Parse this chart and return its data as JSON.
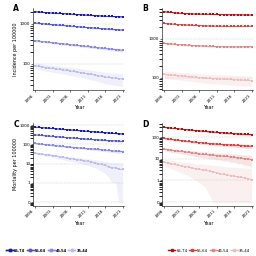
{
  "years": [
    1996,
    1997,
    1998,
    1999,
    2000,
    2001,
    2002,
    2003,
    2004,
    2005,
    2006,
    2007,
    2008,
    2009,
    2010,
    2011,
    2012,
    2013,
    2014,
    2015,
    2016,
    2017,
    2018,
    2019,
    2020,
    2021
  ],
  "panel_labels": [
    "A",
    "B",
    "C",
    "D"
  ],
  "age_groups": [
    "65-74",
    "55-64",
    "45-54",
    "35-44"
  ],
  "blue_colors": [
    "#1a1aaa",
    "#5555cc",
    "#8888dd",
    "#bbbbee"
  ],
  "red_colors": [
    "#aa1111",
    "#cc4444",
    "#dd8888",
    "#f0bbbb"
  ],
  "incidence_male": {
    "65-74": [
      2000,
      1970,
      1940,
      1910,
      1880,
      1860,
      1840,
      1820,
      1800,
      1780,
      1750,
      1730,
      1710,
      1690,
      1670,
      1650,
      1630,
      1610,
      1590,
      1570,
      1550,
      1540,
      1530,
      1520,
      1510,
      1490
    ],
    "55-64": [
      1050,
      1030,
      1010,
      990,
      970,
      955,
      940,
      925,
      910,
      895,
      880,
      865,
      850,
      835,
      820,
      808,
      796,
      784,
      772,
      760,
      750,
      740,
      730,
      720,
      710,
      700
    ],
    "45-54": [
      380,
      370,
      362,
      354,
      346,
      338,
      330,
      323,
      316,
      309,
      302,
      296,
      290,
      284,
      278,
      272,
      266,
      260,
      254,
      248,
      243,
      238,
      233,
      228,
      223,
      218
    ],
    "35-44": [
      90,
      87,
      84,
      81,
      79,
      77,
      75,
      73,
      71,
      69,
      67,
      65,
      63,
      61,
      59,
      57,
      55,
      53,
      51,
      49,
      47,
      46,
      45,
      44,
      43,
      42
    ]
  },
  "incidence_female": {
    "65-74": [
      5000,
      4900,
      4800,
      4700,
      4600,
      4550,
      4500,
      4450,
      4400,
      4380,
      4360,
      4340,
      4320,
      4300,
      4280,
      4260,
      4240,
      4220,
      4200,
      4190,
      4180,
      4170,
      4160,
      4150,
      4140,
      4130
    ],
    "55-64": [
      2500,
      2460,
      2420,
      2380,
      2340,
      2310,
      2280,
      2260,
      2240,
      2220,
      2200,
      2180,
      2160,
      2150,
      2140,
      2130,
      2120,
      2110,
      2105,
      2100,
      2100,
      2100,
      2105,
      2110,
      2115,
      2120
    ],
    "45-54": [
      760,
      748,
      736,
      724,
      712,
      702,
      692,
      682,
      672,
      665,
      658,
      651,
      644,
      640,
      636,
      632,
      628,
      624,
      622,
      620,
      618,
      620,
      622,
      624,
      626,
      628
    ],
    "35-44": [
      120,
      118,
      116,
      114,
      112,
      110,
      108,
      106,
      104,
      102,
      100,
      98,
      96,
      95,
      94,
      93,
      92,
      91,
      90,
      89,
      88,
      87,
      86,
      85,
      84,
      83
    ]
  },
  "incidence_male_ci": {
    "65-74": [
      40,
      40,
      40,
      40,
      40,
      40,
      40,
      40,
      40,
      40,
      40,
      40,
      40,
      40,
      40,
      40,
      40,
      40,
      40,
      40,
      40,
      40,
      40,
      40,
      40,
      40
    ],
    "55-64": [
      30,
      30,
      30,
      30,
      30,
      30,
      30,
      30,
      30,
      30,
      30,
      30,
      30,
      30,
      30,
      30,
      30,
      30,
      30,
      30,
      30,
      30,
      30,
      30,
      30,
      30
    ],
    "45-54": [
      20,
      20,
      20,
      20,
      20,
      20,
      20,
      20,
      20,
      20,
      20,
      20,
      20,
      20,
      20,
      20,
      20,
      20,
      20,
      20,
      20,
      20,
      20,
      20,
      20,
      20
    ],
    "35-44": [
      15,
      15,
      15,
      15,
      15,
      15,
      15,
      15,
      15,
      15,
      15,
      15,
      15,
      15,
      15,
      15,
      15,
      15,
      15,
      15,
      15,
      15,
      15,
      15,
      15,
      15
    ]
  },
  "incidence_female_ci": {
    "65-74": [
      100,
      100,
      100,
      100,
      100,
      100,
      100,
      100,
      100,
      100,
      100,
      100,
      100,
      100,
      100,
      100,
      100,
      100,
      100,
      100,
      100,
      100,
      100,
      100,
      100,
      100
    ],
    "55-64": [
      60,
      60,
      60,
      60,
      60,
      60,
      60,
      60,
      60,
      60,
      60,
      60,
      60,
      60,
      60,
      60,
      60,
      60,
      60,
      60,
      60,
      60,
      60,
      60,
      60,
      60
    ],
    "45-54": [
      35,
      35,
      35,
      35,
      35,
      35,
      35,
      35,
      35,
      35,
      35,
      35,
      35,
      35,
      35,
      35,
      35,
      35,
      35,
      35,
      35,
      35,
      35,
      35,
      35,
      35
    ],
    "35-44": [
      25,
      25,
      25,
      25,
      25,
      25,
      25,
      25,
      25,
      25,
      25,
      25,
      25,
      25,
      25,
      25,
      25,
      25,
      25,
      25,
      25,
      25,
      25,
      25,
      25,
      25
    ]
  },
  "mortality_male": {
    "65-74": [
      780,
      755,
      730,
      705,
      682,
      660,
      638,
      618,
      598,
      578,
      558,
      540,
      522,
      505,
      488,
      472,
      457,
      442,
      428,
      414,
      401,
      388,
      376,
      364,
      353,
      342
    ],
    "55-64": [
      310,
      298,
      287,
      276,
      266,
      257,
      248,
      240,
      232,
      224,
      217,
      210,
      203,
      197,
      191,
      185,
      180,
      175,
      170,
      165,
      161,
      157,
      153,
      149,
      145,
      141
    ],
    "45-54": [
      110,
      105,
      100,
      96,
      92,
      88,
      84,
      80,
      77,
      74,
      71,
      68,
      66,
      64,
      62,
      60,
      58,
      56,
      54,
      52,
      50,
      48,
      46,
      44,
      43,
      42
    ],
    "35-44": [
      35,
      33,
      31,
      29,
      28,
      26,
      24,
      22,
      21,
      19,
      18,
      17,
      16,
      15,
      14,
      13,
      12,
      11,
      10,
      9,
      8,
      7,
      6,
      6,
      5,
      5
    ]
  },
  "mortality_female": {
    "65-74": [
      290,
      278,
      267,
      257,
      247,
      238,
      229,
      221,
      213,
      206,
      199,
      192,
      186,
      180,
      175,
      170,
      165,
      160,
      156,
      152,
      148,
      144,
      141,
      138,
      135,
      132
    ],
    "55-64": [
      88,
      84,
      80,
      76,
      73,
      70,
      67,
      64,
      62,
      59,
      57,
      55,
      53,
      51,
      50,
      48,
      47,
      46,
      45,
      44,
      43,
      42,
      41,
      40,
      39,
      38
    ],
    "45-54": [
      28,
      27,
      25,
      24,
      23,
      22,
      21,
      20,
      19,
      18,
      17,
      16,
      16,
      15,
      15,
      14,
      14,
      13,
      13,
      12,
      12,
      11,
      11,
      10,
      10,
      9
    ],
    "35-44": [
      7.0,
      6.5,
      6.0,
      5.5,
      5.0,
      4.7,
      4.4,
      4.1,
      3.8,
      3.5,
      3.3,
      3.1,
      2.9,
      2.7,
      2.5,
      2.3,
      2.1,
      1.9,
      1.8,
      1.7,
      1.6,
      1.5,
      1.4,
      1.3,
      1.2,
      1.1
    ]
  },
  "mortality_male_ci": {
    "65-74": [
      25,
      25,
      25,
      25,
      25,
      25,
      25,
      25,
      25,
      25,
      25,
      25,
      25,
      25,
      25,
      25,
      25,
      25,
      25,
      25,
      25,
      25,
      25,
      25,
      25,
      25
    ],
    "55-64": [
      15,
      15,
      15,
      15,
      15,
      15,
      15,
      15,
      15,
      15,
      15,
      15,
      15,
      15,
      15,
      15,
      15,
      15,
      15,
      15,
      15,
      15,
      15,
      15,
      15,
      15
    ],
    "45-54": [
      8,
      8,
      8,
      8,
      8,
      8,
      8,
      8,
      8,
      8,
      8,
      8,
      8,
      8,
      8,
      8,
      8,
      8,
      8,
      8,
      8,
      8,
      8,
      8,
      8,
      8
    ],
    "35-44": [
      5,
      5,
      5,
      5,
      5,
      5,
      5,
      5,
      5,
      5,
      5,
      5,
      5,
      5,
      5,
      5,
      5,
      5,
      5,
      5,
      5,
      5,
      5,
      5,
      5,
      5
    ]
  },
  "mortality_female_ci": {
    "65-74": [
      15,
      15,
      15,
      15,
      15,
      15,
      15,
      15,
      15,
      15,
      15,
      15,
      15,
      15,
      15,
      15,
      15,
      15,
      15,
      15,
      15,
      15,
      15,
      15,
      15,
      15
    ],
    "55-64": [
      8,
      8,
      8,
      8,
      8,
      8,
      8,
      8,
      8,
      8,
      8,
      8,
      8,
      8,
      8,
      8,
      8,
      8,
      8,
      8,
      8,
      8,
      8,
      8,
      8,
      8
    ],
    "45-54": [
      5,
      5,
      5,
      5,
      5,
      5,
      5,
      5,
      5,
      5,
      5,
      5,
      5,
      5,
      5,
      5,
      5,
      5,
      5,
      5,
      5,
      5,
      5,
      5,
      5,
      5
    ],
    "35-44": [
      2.5,
      2.5,
      2.5,
      2.5,
      2.5,
      2.5,
      2.5,
      2.5,
      2.5,
      2.5,
      2.5,
      2.5,
      2.5,
      2.5,
      2.5,
      2.5,
      2.5,
      2.5,
      2.5,
      2.5,
      2.5,
      2.5,
      2.5,
      2.5,
      2.5,
      2.5
    ]
  },
  "bg_color": "#ffffff",
  "grid_color": "#cccccc",
  "ylabel_A": "Incidence per 100000",
  "ylabel_C": "Mortality per 100000",
  "use_log": [
    true,
    true,
    true,
    true
  ]
}
